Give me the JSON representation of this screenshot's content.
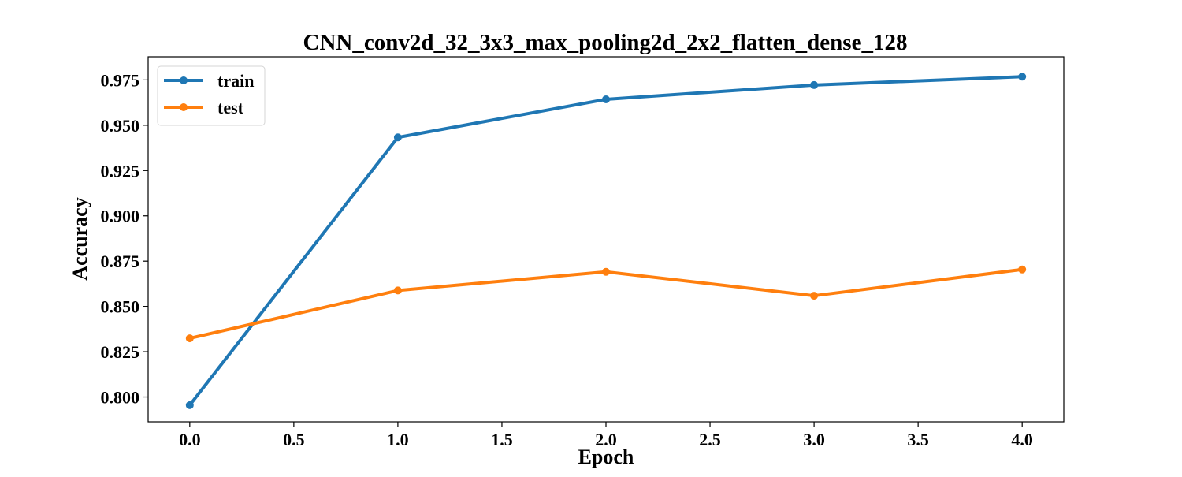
{
  "chart_data": {
    "type": "line",
    "title": "CNN_conv2d_32_3x3_max_pooling2d_2x2_flatten_dense_128",
    "xlabel": "Epoch",
    "ylabel": "Accuracy",
    "x": [
      0,
      1,
      2,
      3,
      4
    ],
    "xlim": [
      -0.2,
      4.2
    ],
    "ylim": [
      0.7863,
      0.9878
    ],
    "xticks": [
      0.0,
      0.5,
      1.0,
      1.5,
      2.0,
      2.5,
      3.0,
      3.5,
      4.0
    ],
    "xtick_labels": [
      "0.0",
      "0.5",
      "1.0",
      "1.5",
      "2.0",
      "2.5",
      "3.0",
      "3.5",
      "4.0"
    ],
    "yticks": [
      0.8,
      0.825,
      0.85,
      0.875,
      0.9,
      0.925,
      0.95,
      0.975
    ],
    "ytick_labels": [
      "0.800",
      "0.825",
      "0.850",
      "0.875",
      "0.900",
      "0.925",
      "0.950",
      "0.975"
    ],
    "grid": false,
    "legend_position": "top-left",
    "series": [
      {
        "name": "train",
        "color": "#1f77b4",
        "values": [
          0.7955,
          0.9433,
          0.9643,
          0.9722,
          0.9768
        ]
      },
      {
        "name": "test",
        "color": "#ff7f0e",
        "values": [
          0.8324,
          0.8588,
          0.8691,
          0.8559,
          0.8704
        ]
      }
    ]
  }
}
